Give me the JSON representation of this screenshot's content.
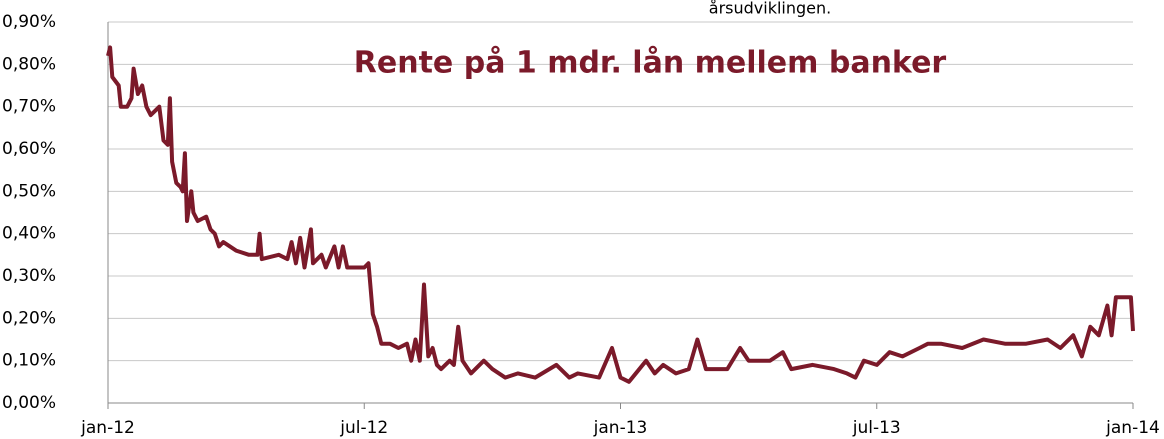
{
  "chart_data": {
    "type": "line",
    "title": "Rente på 1 mdr. lån mellem banker",
    "annotation": "årsudviklingen.",
    "color": "#7b1a2a",
    "x": [
      0,
      0.05,
      0.1,
      0.25,
      0.3,
      0.45,
      0.55,
      0.6,
      0.7,
      0.8,
      0.9,
      1.0,
      1.1,
      1.2,
      1.3,
      1.4,
      1.45,
      1.5,
      1.6,
      1.7,
      1.75,
      1.8,
      1.85,
      1.95,
      2.0,
      2.1,
      2.3,
      2.4,
      2.5,
      2.6,
      2.7,
      3.0,
      3.3,
      3.5,
      3.55,
      3.6,
      4.0,
      4.2,
      4.3,
      4.4,
      4.5,
      4.6,
      4.75,
      4.8,
      5.0,
      5.1,
      5.3,
      5.4,
      5.5,
      5.6,
      6.0,
      6.1,
      6.2,
      6.3,
      6.4,
      6.6,
      6.8,
      7.0,
      7.1,
      7.2,
      7.3,
      7.4,
      7.5,
      7.6,
      7.7,
      7.8,
      8.0,
      8.1,
      8.2,
      8.3,
      8.5,
      8.8,
      9.0,
      9.3,
      9.6,
      10.0,
      10.5,
      10.8,
      11.0,
      11.5,
      11.8,
      12.0,
      12.2,
      12.6,
      12.8,
      13.0,
      13.3,
      13.6,
      13.8,
      14.0,
      14.5,
      14.8,
      15.0,
      15.5,
      15.8,
      16.0,
      16.5,
      17.0,
      17.3,
      17.5,
      17.7,
      18.0,
      18.3,
      18.6,
      19.0,
      19.2,
      19.5,
      20.0,
      20.5,
      21.0,
      21.5,
      22.0,
      22.3,
      22.6,
      22.8,
      23.0,
      23.2,
      23.4,
      23.5,
      23.6,
      23.8,
      23.95,
      24.0
    ],
    "values": [
      0.82,
      0.84,
      0.77,
      0.75,
      0.7,
      0.7,
      0.72,
      0.79,
      0.73,
      0.75,
      0.7,
      0.68,
      0.69,
      0.7,
      0.62,
      0.61,
      0.72,
      0.57,
      0.52,
      0.51,
      0.5,
      0.59,
      0.43,
      0.5,
      0.45,
      0.43,
      0.44,
      0.41,
      0.4,
      0.37,
      0.38,
      0.36,
      0.35,
      0.35,
      0.4,
      0.34,
      0.35,
      0.34,
      0.38,
      0.33,
      0.39,
      0.32,
      0.41,
      0.33,
      0.35,
      0.32,
      0.37,
      0.32,
      0.37,
      0.32,
      0.32,
      0.33,
      0.21,
      0.18,
      0.14,
      0.14,
      0.13,
      0.14,
      0.1,
      0.15,
      0.1,
      0.28,
      0.11,
      0.13,
      0.09,
      0.08,
      0.1,
      0.09,
      0.18,
      0.1,
      0.07,
      0.1,
      0.08,
      0.06,
      0.07,
      0.06,
      0.09,
      0.06,
      0.07,
      0.06,
      0.13,
      0.06,
      0.05,
      0.1,
      0.07,
      0.09,
      0.07,
      0.08,
      0.15,
      0.08,
      0.08,
      0.13,
      0.1,
      0.1,
      0.12,
      0.08,
      0.09,
      0.08,
      0.07,
      0.06,
      0.1,
      0.09,
      0.12,
      0.11,
      0.13,
      0.14,
      0.14,
      0.13,
      0.15,
      0.14,
      0.14,
      0.15,
      0.13,
      0.16,
      0.11,
      0.18,
      0.16,
      0.23,
      0.16,
      0.25,
      0.25,
      0.25,
      0.17
    ],
    "xlim": [
      0,
      24
    ],
    "xticks": [
      {
        "value": 0,
        "label": "jan-12"
      },
      {
        "value": 6,
        "label": "jul-12"
      },
      {
        "value": 12,
        "label": "jan-13"
      },
      {
        "value": 18,
        "label": "jul-13"
      },
      {
        "value": 24,
        "label": "jan-14"
      }
    ],
    "ylim": [
      0,
      0.9
    ],
    "yticks": [
      {
        "value": 0,
        "label": "0,00%"
      },
      {
        "value": 0.1,
        "label": "0,10%"
      },
      {
        "value": 0.2,
        "label": "0,20%"
      },
      {
        "value": 0.3,
        "label": "0,30%"
      },
      {
        "value": 0.4,
        "label": "0,40%"
      },
      {
        "value": 0.5,
        "label": "0,50%"
      },
      {
        "value": 0.6,
        "label": "0,60%"
      },
      {
        "value": 0.7,
        "label": "0,70%"
      },
      {
        "value": 0.8,
        "label": "0,80%"
      },
      {
        "value": 0.9,
        "label": "0,90%"
      }
    ],
    "grid": true
  }
}
